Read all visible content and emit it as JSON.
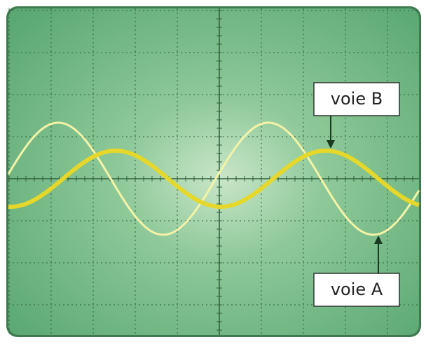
{
  "labels": {
    "channel_b": "voie B",
    "channel_a": "voie A"
  }
}
